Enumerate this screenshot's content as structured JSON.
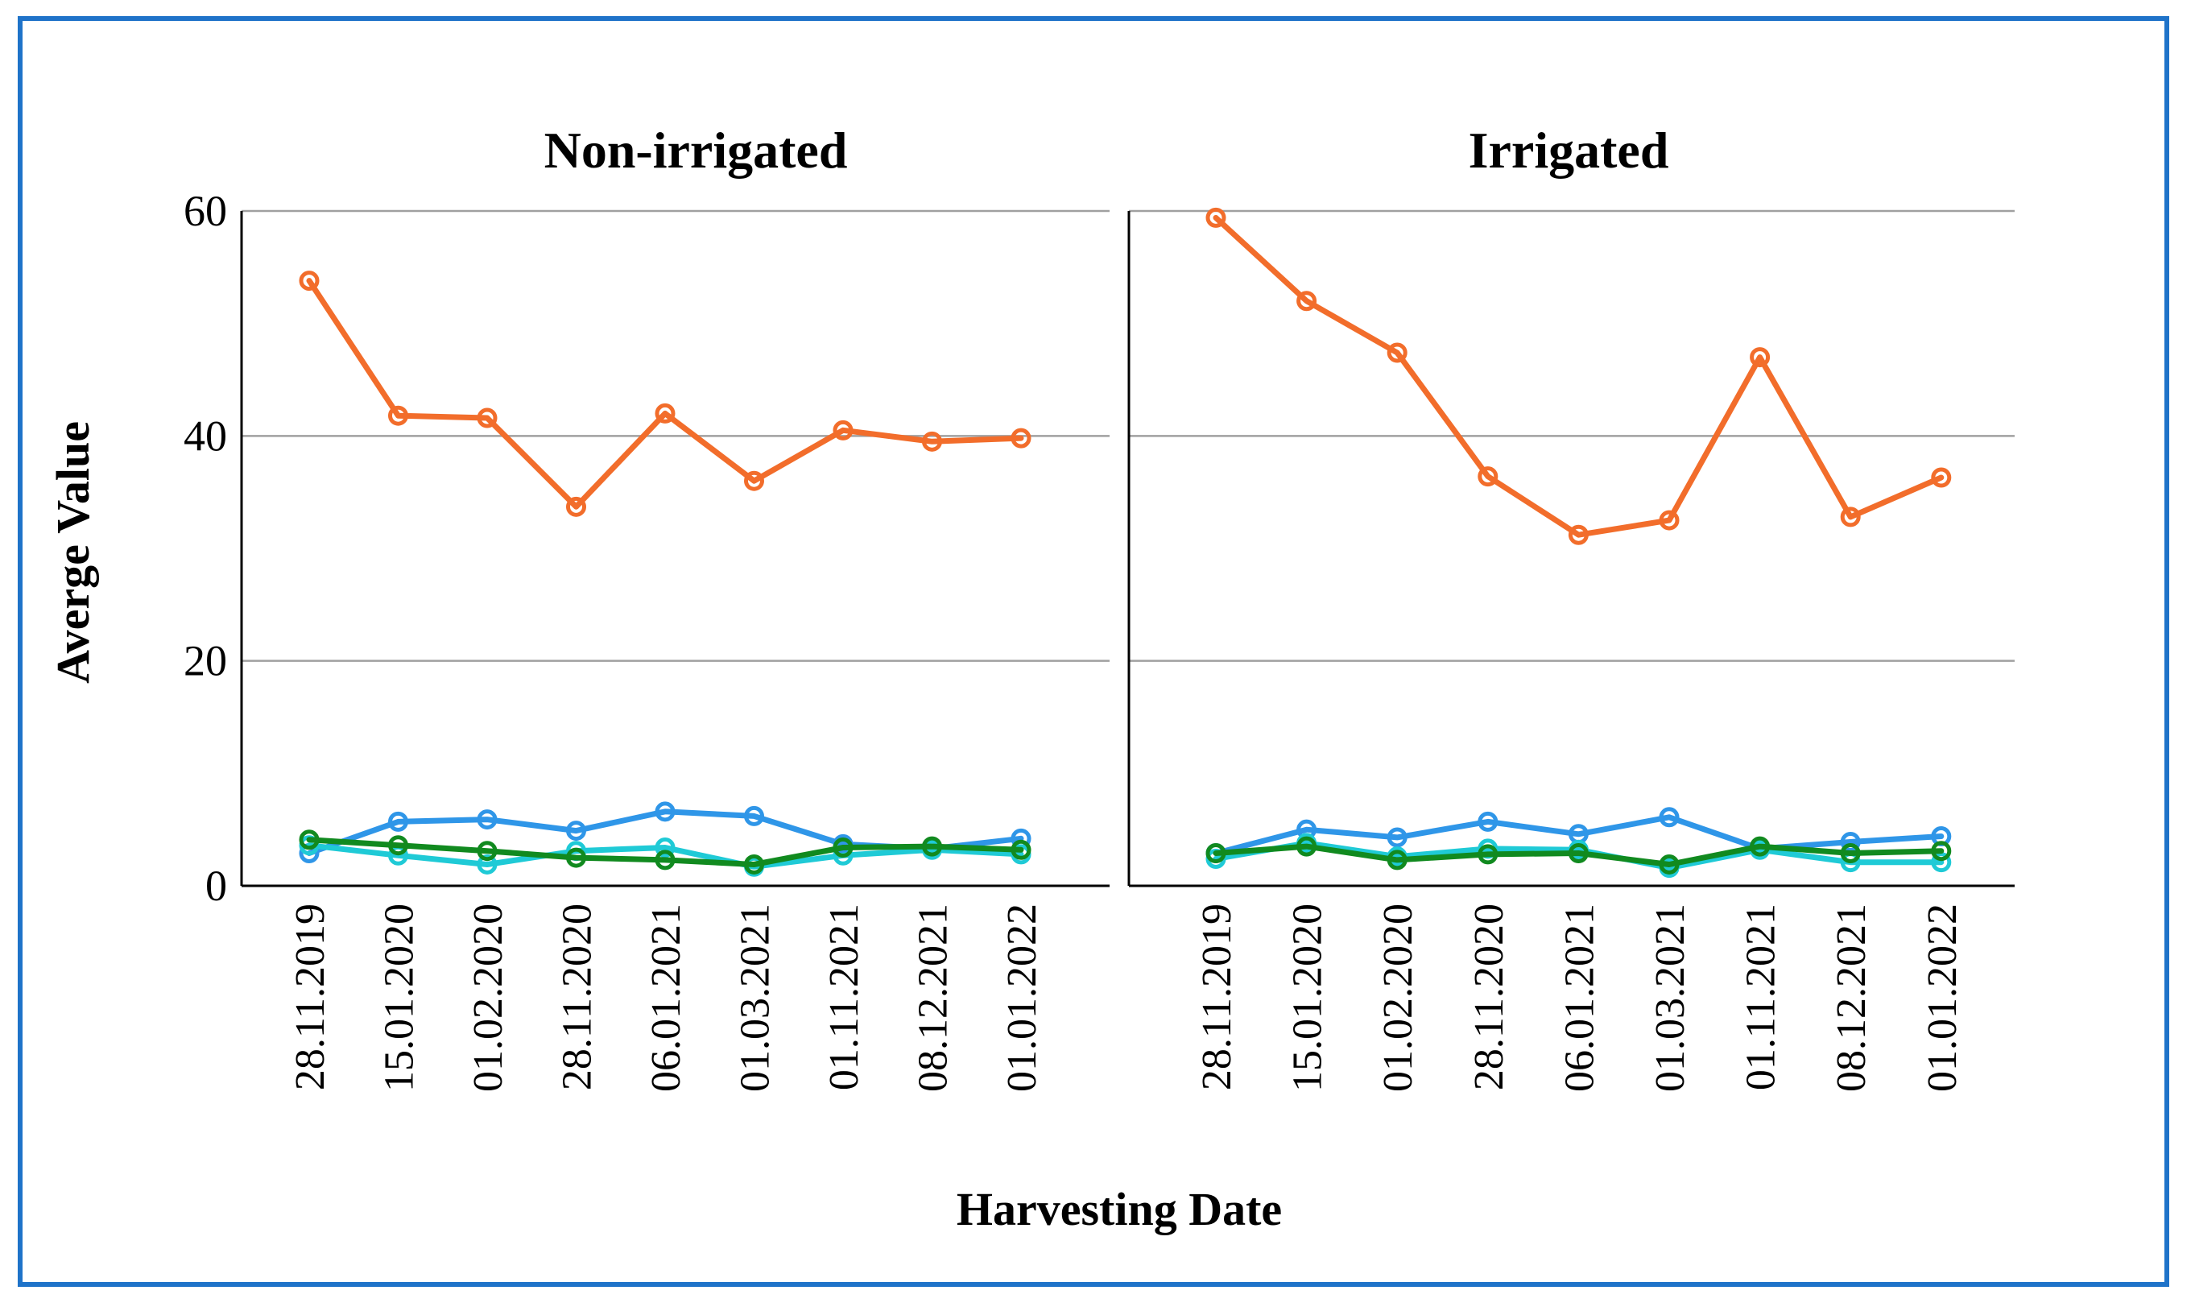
{
  "chart_data": {
    "type": "line",
    "xlabel": "Harvesting Date",
    "ylabel": "Averge Value",
    "ylim": [
      0,
      60
    ],
    "yticks": [
      "0",
      "20",
      "40",
      "60"
    ],
    "categories": [
      "28.11.2019",
      "15.01.2020",
      "01.02.2020",
      "28.11.2020",
      "06.01.2021",
      "01.03.2021",
      "01.11.2021",
      "08.12.2021",
      "01.01.2022"
    ],
    "series_colors": {
      "orange": "#f26d2b",
      "blue": "#2f96e8",
      "cyan": "#1fcad6",
      "green": "#118a1f"
    },
    "panels": [
      {
        "title": "Non-irrigated",
        "series": [
          {
            "name": "orange",
            "values": [
              53.8,
              41.8,
              41.6,
              33.7,
              42.0,
              36.0,
              40.5,
              39.5,
              39.8
            ]
          },
          {
            "name": "blue",
            "values": [
              2.9,
              5.7,
              5.9,
              4.9,
              6.6,
              6.2,
              3.7,
              3.3,
              4.2
            ]
          },
          {
            "name": "cyan",
            "values": [
              3.6,
              2.7,
              1.9,
              3.1,
              3.4,
              1.7,
              2.7,
              3.2,
              2.8
            ]
          },
          {
            "name": "green",
            "values": [
              4.1,
              3.6,
              3.1,
              2.5,
              2.3,
              1.9,
              3.4,
              3.5,
              3.2
            ]
          }
        ]
      },
      {
        "title": "Irrigated",
        "series": [
          {
            "name": "orange",
            "values": [
              59.4,
              52.0,
              47.4,
              36.4,
              31.2,
              32.5,
              47.0,
              32.8,
              36.3
            ]
          },
          {
            "name": "blue",
            "values": [
              2.9,
              5.0,
              4.3,
              5.7,
              4.6,
              6.1,
              3.3,
              3.9,
              4.4
            ]
          },
          {
            "name": "cyan",
            "values": [
              2.4,
              3.8,
              2.6,
              3.3,
              3.2,
              1.6,
              3.2,
              2.1,
              2.1
            ]
          },
          {
            "name": "green",
            "values": [
              2.9,
              3.5,
              2.3,
              2.8,
              2.9,
              1.9,
              3.5,
              2.9,
              3.1
            ]
          }
        ]
      }
    ]
  }
}
